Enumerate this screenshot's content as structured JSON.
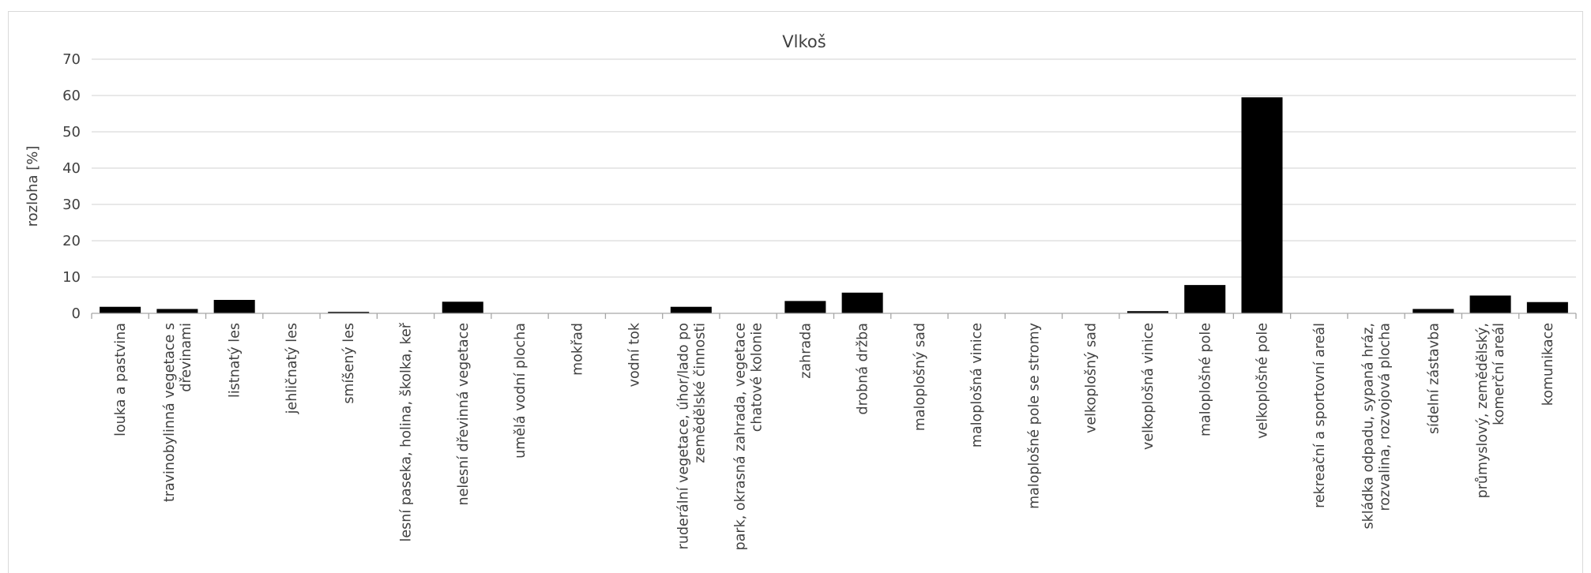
{
  "chart_data": {
    "type": "bar",
    "title": "Vlkoš",
    "xlabel": "",
    "ylabel": "rozloha [%]",
    "ylim": [
      0,
      70
    ],
    "yticks": [
      0,
      10,
      20,
      30,
      40,
      50,
      60,
      70
    ],
    "grid": true,
    "legend": "none",
    "bar_color": "#000000",
    "categories": [
      "louka a pastvina",
      "travinobylinná vegetace s dřevinami",
      "listnatý les",
      "jehličnatý les",
      "smíšený les",
      "lesní paseka, holina, školka, keř",
      "nelesní dřevinná vegetace",
      "umělá vodní plocha",
      "mokřad",
      "vodní tok",
      "ruderální vegetace, úhor/lado po zemědělské činnosti",
      "park, okrasná zahrada, vegetace chatové kolonie",
      "zahrada",
      "drobná držba",
      "maloplošný sad",
      "maloplošná vinice",
      "maloplošné pole se stromy",
      "velkoplošný sad",
      "velkoplošná vinice",
      "maloplošné pole",
      "velkoplošné pole",
      "rekreační a sportovní areál",
      "skládka odpadu, sypaná hráz, rozvalina, rozvojová plocha",
      "sídelní zástavba",
      "průmyslový, zemědělský, komerční areál",
      "komunikace"
    ],
    "category_lines": [
      [
        "louka a pastvina"
      ],
      [
        "travinobylinná vegetace s",
        "dřevinami"
      ],
      [
        "listnatý les"
      ],
      [
        "jehličnatý les"
      ],
      [
        "smíšený les"
      ],
      [
        "lesní paseka, holina, školka, keř"
      ],
      [
        "nelesní dřevinná vegetace"
      ],
      [
        "umělá vodní plocha"
      ],
      [
        "mokřad"
      ],
      [
        "vodní tok"
      ],
      [
        "ruderální vegetace, úhor/lado po",
        "zemědělské činnosti"
      ],
      [
        "park, okrasná zahrada, vegetace",
        "chatové kolonie"
      ],
      [
        "zahrada"
      ],
      [
        "drobná držba"
      ],
      [
        "maloplošný sad"
      ],
      [
        "maloplošná vinice"
      ],
      [
        "maloplošné pole se stromy"
      ],
      [
        "velkoplošný sad"
      ],
      [
        "velkoplošná vinice"
      ],
      [
        "maloplošné pole"
      ],
      [
        "velkoplošné pole"
      ],
      [
        "rekreační a sportovní areál"
      ],
      [
        "skládka odpadu, sypaná hráz,",
        "rozvalina, rozvojová plocha"
      ],
      [
        "sídelní zástavba"
      ],
      [
        "průmyslový, zemědělský,",
        "komerční areál"
      ],
      [
        "komunikace"
      ]
    ],
    "values": [
      1.8,
      1.2,
      3.7,
      0,
      0.4,
      0,
      3.2,
      0,
      0,
      0,
      1.8,
      0,
      3.4,
      5.7,
      0,
      0,
      0,
      0,
      0.6,
      7.8,
      59.5,
      0,
      0,
      1.2,
      4.9,
      3.1
    ]
  }
}
